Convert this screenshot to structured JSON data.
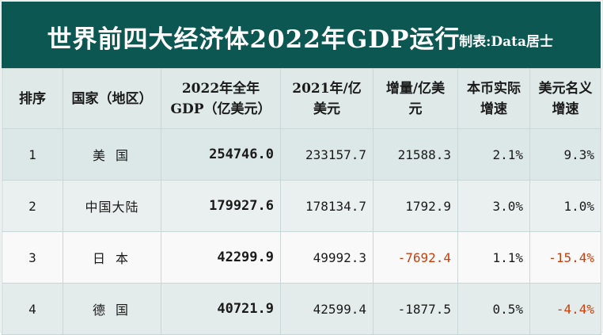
{
  "header": {
    "title": "世界前四大经济体2022年GDP运行",
    "credit": "制表:Data居士"
  },
  "columns": [
    "排序",
    "国家（地区）",
    "2022年全年GDP（亿美元）",
    "2021年/亿美元",
    "增量/亿美元",
    "本币实际增速",
    "美元名义增速"
  ],
  "rows": [
    {
      "rank": "1",
      "country": "美 国",
      "gdp_2022": "254746.0",
      "gdp_2021": "233157.7",
      "increase": "21588.3",
      "real_growth": "2.1%",
      "nominal_growth": "9.3%"
    },
    {
      "rank": "2",
      "country": "中国大陆",
      "gdp_2022": "179927.6",
      "gdp_2021": "178134.7",
      "increase": "1792.9",
      "real_growth": "3.0%",
      "nominal_growth": "1.0%"
    },
    {
      "rank": "3",
      "country": "日 本",
      "gdp_2022": "42299.9",
      "gdp_2021": "49992.3",
      "increase": "-7692.4",
      "real_growth": "1.1%",
      "nominal_growth": "-15.4%"
    },
    {
      "rank": "4",
      "country": "德 国",
      "gdp_2022": "40721.9",
      "gdp_2021": "42599.4",
      "increase": "-1877.5",
      "real_growth": "0.5%",
      "nominal_growth": "-4.4%"
    }
  ]
}
